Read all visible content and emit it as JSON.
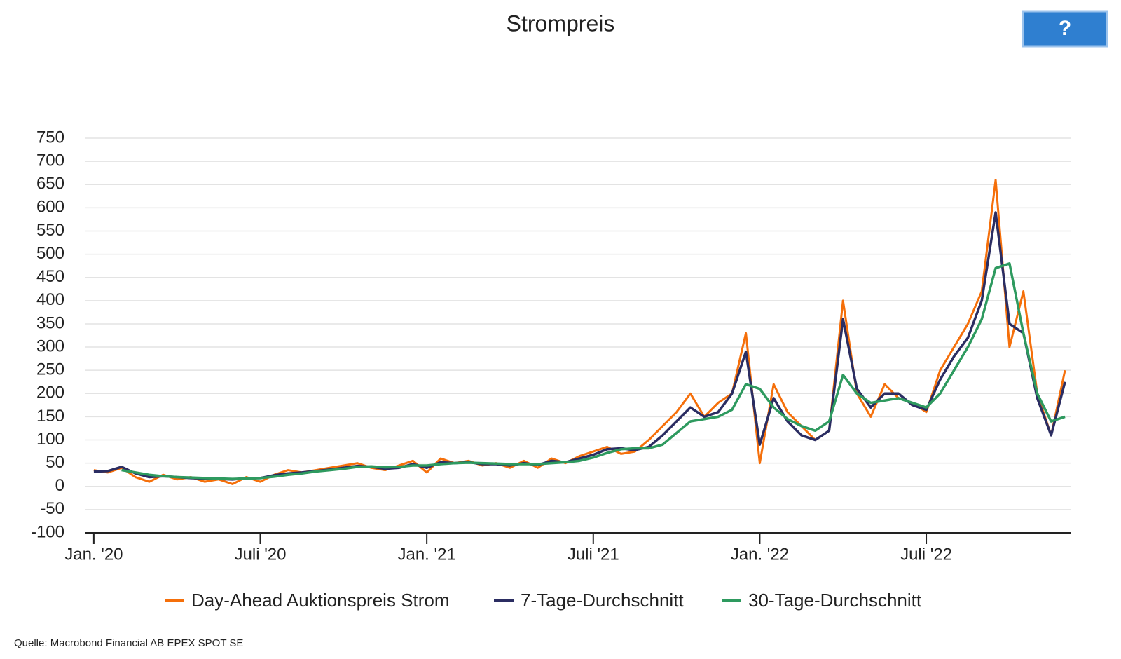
{
  "chart_data": {
    "type": "line",
    "title": "Strompreis",
    "help_button": "?",
    "source": "Quelle: Macrobond Financial AB EPEX SPOT SE",
    "x": [
      0,
      0.5,
      1,
      1.5,
      2,
      2.5,
      3,
      3.5,
      4,
      4.5,
      5,
      5.5,
      6,
      6.5,
      7,
      7.5,
      8,
      8.5,
      9,
      9.5,
      10,
      10.5,
      11,
      11.5,
      12,
      12.5,
      13,
      13.5,
      14,
      14.5,
      15,
      15.5,
      16,
      16.5,
      17,
      17.5,
      18,
      18.5,
      19,
      19.5,
      20,
      20.5,
      21,
      21.5,
      22,
      22.5,
      23,
      23.5,
      24,
      24.5,
      25,
      25.5,
      26,
      26.5,
      27,
      27.5,
      28,
      28.5,
      29,
      29.5,
      30,
      30.5,
      31,
      31.5,
      32,
      32.5,
      33,
      33.5,
      34,
      34.5,
      35
    ],
    "series": [
      {
        "name": "Day-Ahead Auktionspreis Strom",
        "color": "#f56f0a",
        "values": [
          35,
          30,
          40,
          20,
          10,
          25,
          15,
          20,
          10,
          15,
          5,
          20,
          10,
          25,
          35,
          30,
          35,
          40,
          45,
          50,
          40,
          35,
          45,
          55,
          30,
          60,
          50,
          55,
          45,
          50,
          40,
          55,
          40,
          60,
          50,
          65,
          75,
          85,
          70,
          75,
          100,
          130,
          160,
          200,
          150,
          180,
          200,
          330,
          50,
          220,
          160,
          130,
          100,
          120,
          400,
          200,
          150,
          220,
          190,
          180,
          160,
          250,
          300,
          350,
          420,
          660,
          300,
          420,
          200,
          110,
          250
        ]
      },
      {
        "name": "7-Tage-Durchschnitt",
        "color": "#2b2d62",
        "values": [
          32,
          33,
          42,
          28,
          20,
          22,
          20,
          18,
          17,
          16,
          15,
          18,
          18,
          24,
          28,
          30,
          33,
          36,
          40,
          44,
          42,
          38,
          40,
          48,
          40,
          52,
          50,
          52,
          48,
          48,
          45,
          50,
          46,
          55,
          52,
          60,
          68,
          80,
          82,
          78,
          85,
          110,
          140,
          170,
          150,
          160,
          200,
          290,
          90,
          190,
          140,
          110,
          100,
          120,
          360,
          210,
          170,
          200,
          200,
          175,
          165,
          230,
          280,
          320,
          400,
          590,
          350,
          330,
          190,
          110,
          225
        ]
      },
      {
        "name": "30-Tage-Durchschnitt",
        "color": "#2e9a5f",
        "values": [
          null,
          null,
          35,
          30,
          25,
          22,
          20,
          19,
          18,
          17,
          16,
          17,
          18,
          21,
          25,
          28,
          32,
          35,
          38,
          42,
          43,
          41,
          42,
          45,
          45,
          48,
          50,
          51,
          50,
          49,
          48,
          48,
          48,
          50,
          52,
          55,
          62,
          72,
          80,
          82,
          82,
          90,
          115,
          140,
          145,
          150,
          165,
          220,
          210,
          170,
          145,
          130,
          120,
          140,
          240,
          200,
          180,
          185,
          190,
          180,
          170,
          200,
          250,
          300,
          360,
          470,
          480,
          330,
          200,
          140,
          150
        ]
      }
    ],
    "xlim": [
      -0.3,
      35.2
    ],
    "xticks": [
      {
        "value": 0,
        "label": "Jan. '20"
      },
      {
        "value": 6,
        "label": "Juli '20"
      },
      {
        "value": 12,
        "label": "Jan. '21"
      },
      {
        "value": 18,
        "label": "Juli '21"
      },
      {
        "value": 24,
        "label": "Jan. '22"
      },
      {
        "value": 30,
        "label": "Juli '22"
      }
    ],
    "ylim": [
      -100,
      750
    ],
    "yticks": [
      -100,
      -50,
      0,
      50,
      100,
      150,
      200,
      250,
      300,
      350,
      400,
      450,
      500,
      550,
      600,
      650,
      700,
      750
    ],
    "grid": true
  }
}
